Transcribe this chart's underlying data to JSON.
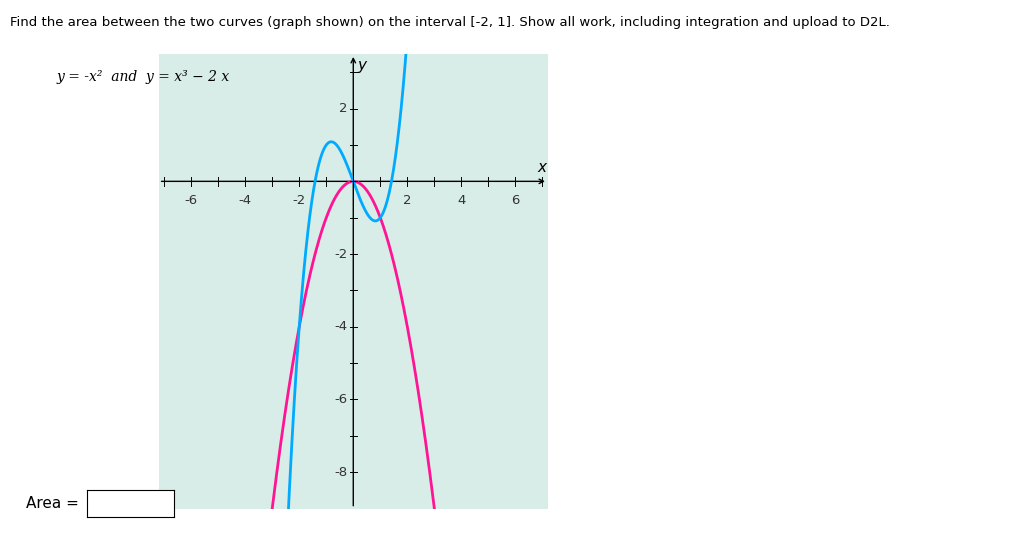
{
  "title_line1": "Find the area between the two curves (graph shown) on the interval [-2, 1]. Show all work, including integration and upload to D2L.",
  "title_line2": "y = -x²  and  y = x³ − 2 x",
  "bg_color": "#d8ece8",
  "curve1_color": "#ff1493",
  "curve2_color": "#00aaff",
  "plot_xlim": [
    -7.2,
    7.2
  ],
  "plot_ylim": [
    -9.0,
    3.5
  ],
  "x_ticks": [
    -6,
    -4,
    -2,
    2,
    4,
    6
  ],
  "y_ticks": [
    -8,
    -6,
    -4,
    -2,
    2
  ],
  "area_label": "Area =",
  "xlabel": "x",
  "ylabel": "y",
  "figsize": [
    10.24,
    5.41
  ],
  "dpi": 100
}
